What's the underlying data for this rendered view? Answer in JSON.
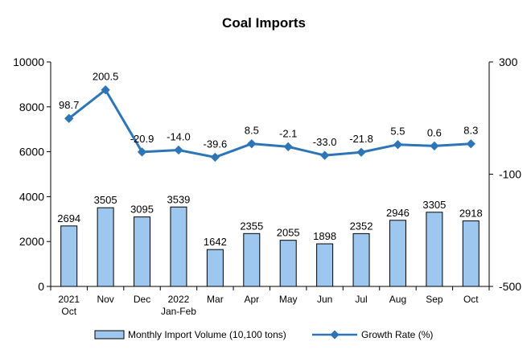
{
  "chart_data": {
    "type": "bar+line",
    "title": "Coal Imports",
    "categories": [
      [
        "2021",
        "Oct"
      ],
      [
        "Nov"
      ],
      [
        "Dec"
      ],
      [
        "2022",
        "Jan-Feb"
      ],
      [
        "Mar"
      ],
      [
        "Apr"
      ],
      [
        "May"
      ],
      [
        "Jun"
      ],
      [
        "Jul"
      ],
      [
        "Aug"
      ],
      [
        "Sep"
      ],
      [
        "Oct"
      ]
    ],
    "series": [
      {
        "name": "Monthly Import Volume (10,100 tons)",
        "type": "bar",
        "axis": "left",
        "color": "#9ec7ef",
        "values": [
          2694,
          3505,
          3095,
          3539,
          1642,
          2355,
          2055,
          1898,
          2352,
          2946,
          3305,
          2918
        ],
        "labels": [
          "2694",
          "3505",
          "3095",
          "3539",
          "1642",
          "2355",
          "2055",
          "1898",
          "2352",
          "2946",
          "3305",
          "2918"
        ]
      },
      {
        "name": "Growth Rate (%)",
        "type": "line",
        "axis": "right",
        "color": "#2e75b6",
        "values": [
          98.7,
          200.5,
          -20.9,
          -14.0,
          -39.6,
          8.5,
          -2.1,
          -33.0,
          -21.8,
          5.5,
          0.6,
          8.3
        ],
        "labels": [
          "98.7",
          "200.5",
          "-20.9",
          "-14.0",
          "-39.6",
          "8.5",
          "-2.1",
          "-33.0",
          "-21.8",
          "5.5",
          "0.6",
          "8.3"
        ]
      }
    ],
    "y_left": {
      "range": [
        0,
        10000
      ],
      "ticks": [
        "0",
        "2000",
        "4000",
        "6000",
        "8000",
        "10000"
      ]
    },
    "y_right": {
      "range": [
        -500,
        300
      ],
      "ticks": [
        "-500",
        "-100",
        "300"
      ]
    },
    "legend": "bottom",
    "grid": false
  }
}
